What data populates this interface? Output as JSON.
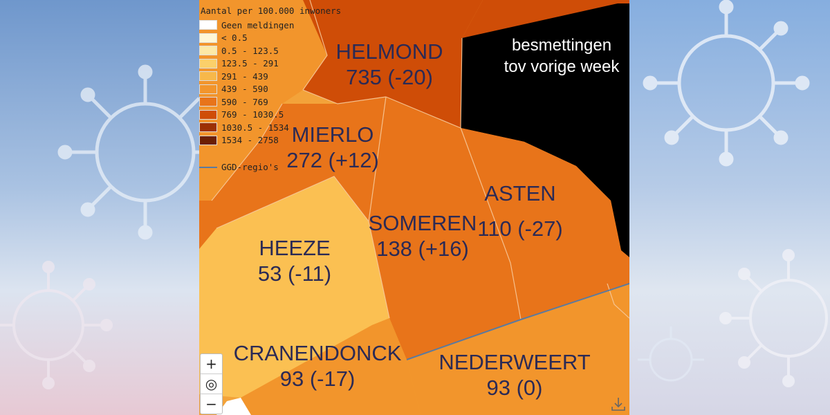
{
  "legend": {
    "title": "Aantal per 100.000 inwoners",
    "items": [
      {
        "label": "Geen meldingen",
        "color": "#ffffff"
      },
      {
        "label": "< 0.5",
        "color": "#fff7d6"
      },
      {
        "label": "0.5 - 123.5",
        "color": "#fde9a6"
      },
      {
        "label": "123.5 - 291",
        "color": "#fbd06a"
      },
      {
        "label": "291 - 439",
        "color": "#f7b84a"
      },
      {
        "label": "439 - 590",
        "color": "#f2952c"
      },
      {
        "label": "590 - 769",
        "color": "#e8741a"
      },
      {
        "label": "769 - 1030.5",
        "color": "#cf4d07"
      },
      {
        "label": "1030.5 - 1534",
        "color": "#9c3004"
      },
      {
        "label": "1534 - 2758",
        "color": "#6b1f04"
      }
    ],
    "boundary_label": "GGD-regio's"
  },
  "regions": [
    {
      "name": "HELMOND",
      "value": "735 (-20)",
      "color": "#cf4d07"
    },
    {
      "name": "MIERLO",
      "value": "272 (+12)",
      "color": "#e8741a"
    },
    {
      "name": "SOMEREN",
      "value": "138 (+16)",
      "color": "#e8741a"
    },
    {
      "name": "ASTEN",
      "value": "110 (-27)",
      "color": "#e8741a"
    },
    {
      "name": "HEEZE",
      "value": "53 (-11)",
      "color": "#fbc052"
    },
    {
      "name": "CRANENDONCK",
      "value": "93 (-17)",
      "color": "#f2952c"
    },
    {
      "name": "NEDERWEERT",
      "value": "93 (0)",
      "color": "#f2952c"
    }
  ],
  "note": {
    "line1": "besmettingen",
    "line2": "tov vorige week"
  },
  "controls": {
    "zoom_in": "+",
    "locate": "◎",
    "zoom_out": "−",
    "download_icon": "download-icon"
  },
  "colors": {
    "unknown_region": "#000000",
    "boundary": "#5a7aa0",
    "municipal_line": "#f7c99a"
  }
}
